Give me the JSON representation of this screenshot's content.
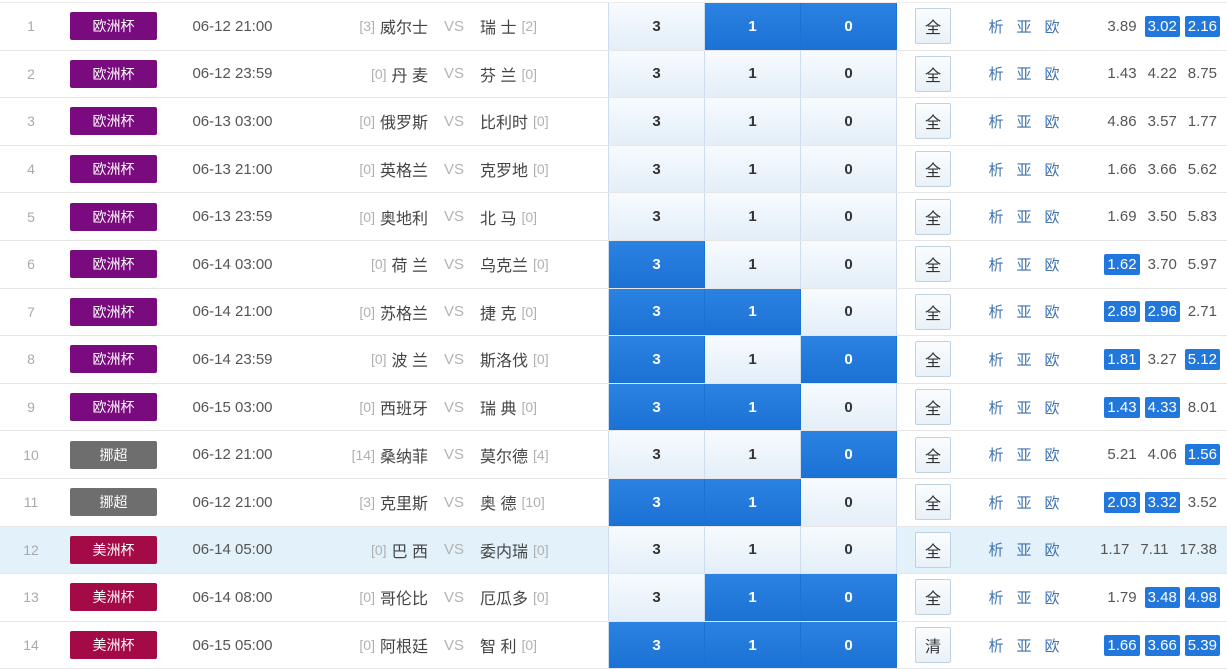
{
  "shared": {
    "vs_label": "VS",
    "pick_values": [
      "3",
      "1",
      "0"
    ],
    "link_labels": [
      "析",
      "亚",
      "欧"
    ]
  },
  "colors": {
    "league_euro": "#7a0b7e",
    "league_norway": "#6e6e6e",
    "league_copa": "#a40a46",
    "selected_blue": "#2277dd",
    "link_blue": "#3e73b0",
    "row_highlight_bg": "#e2f1fa"
  },
  "rows": [
    {
      "num": "1",
      "league": "欧洲杯",
      "league_color": "#7a0b7e",
      "time": "06-12 21:00",
      "home_rank": "[3]",
      "home": "威尔士",
      "away": "瑞 士",
      "away_rank": "[2]",
      "picks_selected": [
        false,
        true,
        true
      ],
      "button": "全",
      "odds": [
        "3.89",
        "3.02",
        "2.16"
      ],
      "odds_selected": [
        false,
        true,
        true
      ],
      "highlight": false
    },
    {
      "num": "2",
      "league": "欧洲杯",
      "league_color": "#7a0b7e",
      "time": "06-12 23:59",
      "home_rank": "[0]",
      "home": "丹 麦",
      "away": "芬 兰",
      "away_rank": "[0]",
      "picks_selected": [
        false,
        false,
        false
      ],
      "button": "全",
      "odds": [
        "1.43",
        "4.22",
        "8.75"
      ],
      "odds_selected": [
        false,
        false,
        false
      ],
      "highlight": false
    },
    {
      "num": "3",
      "league": "欧洲杯",
      "league_color": "#7a0b7e",
      "time": "06-13 03:00",
      "home_rank": "[0]",
      "home": "俄罗斯",
      "away": "比利时",
      "away_rank": "[0]",
      "picks_selected": [
        false,
        false,
        false
      ],
      "button": "全",
      "odds": [
        "4.86",
        "3.57",
        "1.77"
      ],
      "odds_selected": [
        false,
        false,
        false
      ],
      "highlight": false
    },
    {
      "num": "4",
      "league": "欧洲杯",
      "league_color": "#7a0b7e",
      "time": "06-13 21:00",
      "home_rank": "[0]",
      "home": "英格兰",
      "away": "克罗地",
      "away_rank": "[0]",
      "picks_selected": [
        false,
        false,
        false
      ],
      "button": "全",
      "odds": [
        "1.66",
        "3.66",
        "5.62"
      ],
      "odds_selected": [
        false,
        false,
        false
      ],
      "highlight": false
    },
    {
      "num": "5",
      "league": "欧洲杯",
      "league_color": "#7a0b7e",
      "time": "06-13 23:59",
      "home_rank": "[0]",
      "home": "奥地利",
      "away": "北 马",
      "away_rank": "[0]",
      "picks_selected": [
        false,
        false,
        false
      ],
      "button": "全",
      "odds": [
        "1.69",
        "3.50",
        "5.83"
      ],
      "odds_selected": [
        false,
        false,
        false
      ],
      "highlight": false
    },
    {
      "num": "6",
      "league": "欧洲杯",
      "league_color": "#7a0b7e",
      "time": "06-14 03:00",
      "home_rank": "[0]",
      "home": "荷 兰",
      "away": "乌克兰",
      "away_rank": "[0]",
      "picks_selected": [
        true,
        false,
        false
      ],
      "button": "全",
      "odds": [
        "1.62",
        "3.70",
        "5.97"
      ],
      "odds_selected": [
        true,
        false,
        false
      ],
      "highlight": false
    },
    {
      "num": "7",
      "league": "欧洲杯",
      "league_color": "#7a0b7e",
      "time": "06-14 21:00",
      "home_rank": "[0]",
      "home": "苏格兰",
      "away": "捷 克",
      "away_rank": "[0]",
      "picks_selected": [
        true,
        true,
        false
      ],
      "button": "全",
      "odds": [
        "2.89",
        "2.96",
        "2.71"
      ],
      "odds_selected": [
        true,
        true,
        false
      ],
      "highlight": false
    },
    {
      "num": "8",
      "league": "欧洲杯",
      "league_color": "#7a0b7e",
      "time": "06-14 23:59",
      "home_rank": "[0]",
      "home": "波 兰",
      "away": "斯洛伐",
      "away_rank": "[0]",
      "picks_selected": [
        true,
        false,
        true
      ],
      "button": "全",
      "odds": [
        "1.81",
        "3.27",
        "5.12"
      ],
      "odds_selected": [
        true,
        false,
        true
      ],
      "highlight": false
    },
    {
      "num": "9",
      "league": "欧洲杯",
      "league_color": "#7a0b7e",
      "time": "06-15 03:00",
      "home_rank": "[0]",
      "home": "西班牙",
      "away": "瑞 典",
      "away_rank": "[0]",
      "picks_selected": [
        true,
        true,
        false
      ],
      "button": "全",
      "odds": [
        "1.43",
        "4.33",
        "8.01"
      ],
      "odds_selected": [
        true,
        true,
        false
      ],
      "highlight": false
    },
    {
      "num": "10",
      "league": "挪超",
      "league_color": "#6e6e6e",
      "time": "06-12 21:00",
      "home_rank": "[14]",
      "home": "桑纳菲",
      "away": "莫尔德",
      "away_rank": "[4]",
      "picks_selected": [
        false,
        false,
        true
      ],
      "button": "全",
      "odds": [
        "5.21",
        "4.06",
        "1.56"
      ],
      "odds_selected": [
        false,
        false,
        true
      ],
      "highlight": false
    },
    {
      "num": "11",
      "league": "挪超",
      "league_color": "#6e6e6e",
      "time": "06-12 21:00",
      "home_rank": "[3]",
      "home": "克里斯",
      "away": "奥 德",
      "away_rank": "[10]",
      "picks_selected": [
        true,
        true,
        false
      ],
      "button": "全",
      "odds": [
        "2.03",
        "3.32",
        "3.52"
      ],
      "odds_selected": [
        true,
        true,
        false
      ],
      "highlight": false
    },
    {
      "num": "12",
      "league": "美洲杯",
      "league_color": "#a40a46",
      "time": "06-14 05:00",
      "home_rank": "[0]",
      "home": "巴 西",
      "away": "委内瑞",
      "away_rank": "[0]",
      "picks_selected": [
        false,
        false,
        false
      ],
      "button": "全",
      "odds": [
        "1.17",
        "7.11",
        "17.38"
      ],
      "odds_selected": [
        false,
        false,
        false
      ],
      "highlight": true
    },
    {
      "num": "13",
      "league": "美洲杯",
      "league_color": "#a40a46",
      "time": "06-14 08:00",
      "home_rank": "[0]",
      "home": "哥伦比",
      "away": "厄瓜多",
      "away_rank": "[0]",
      "picks_selected": [
        false,
        true,
        true
      ],
      "button": "全",
      "odds": [
        "1.79",
        "3.48",
        "4.98"
      ],
      "odds_selected": [
        false,
        true,
        true
      ],
      "highlight": false
    },
    {
      "num": "14",
      "league": "美洲杯",
      "league_color": "#a40a46",
      "time": "06-15 05:00",
      "home_rank": "[0]",
      "home": "阿根廷",
      "away": "智 利",
      "away_rank": "[0]",
      "picks_selected": [
        true,
        true,
        true
      ],
      "button": "清",
      "odds": [
        "1.66",
        "3.66",
        "5.39"
      ],
      "odds_selected": [
        true,
        true,
        true
      ],
      "highlight": false
    }
  ]
}
